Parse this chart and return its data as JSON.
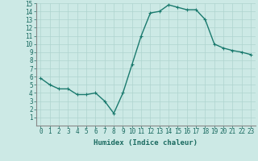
{
  "x": [
    0,
    1,
    2,
    3,
    4,
    5,
    6,
    7,
    8,
    9,
    10,
    11,
    12,
    13,
    14,
    15,
    16,
    17,
    18,
    19,
    20,
    21,
    22,
    23
  ],
  "y": [
    5.8,
    5.0,
    4.5,
    4.5,
    3.8,
    3.8,
    4.0,
    3.0,
    1.5,
    4.0,
    7.5,
    11.0,
    13.8,
    14.0,
    14.8,
    14.5,
    14.2,
    14.2,
    13.0,
    10.0,
    9.5,
    9.2,
    9.0,
    8.7
  ],
  "line_color": "#1a7a6e",
  "marker": "+",
  "marker_size": 3,
  "bg_color": "#cce9e5",
  "grid_color": "#afd4cf",
  "xlabel": "Humidex (Indice chaleur)",
  "xlim": [
    -0.5,
    23.5
  ],
  "ylim": [
    0,
    15
  ],
  "xticks": [
    0,
    1,
    2,
    3,
    4,
    5,
    6,
    7,
    8,
    9,
    10,
    11,
    12,
    13,
    14,
    15,
    16,
    17,
    18,
    19,
    20,
    21,
    22,
    23
  ],
  "yticks": [
    1,
    2,
    3,
    4,
    5,
    6,
    7,
    8,
    9,
    10,
    11,
    12,
    13,
    14,
    15
  ],
  "xlabel_fontsize": 6.5,
  "tick_fontsize": 5.5,
  "line_width": 1.0
}
